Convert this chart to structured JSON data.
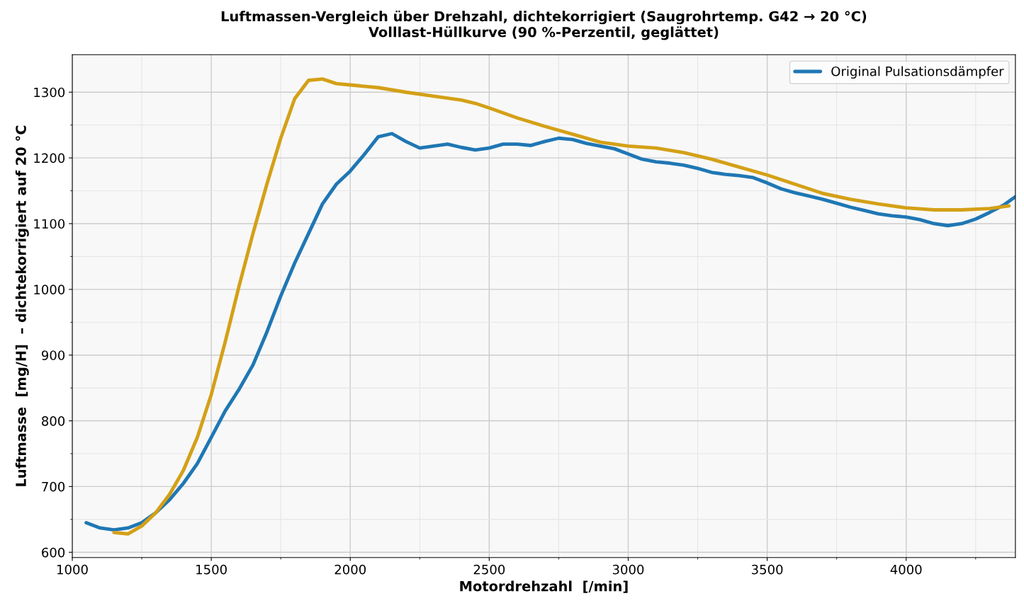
{
  "chart_data": {
    "type": "line",
    "title": "Luftmassen-Vergleich über Drehzahl, dichtekorrigiert (Saugrohrtemp. G42 → 20 °C)",
    "subtitle": "Volllast-Hüllkurve (90 %-Perzentil, geglättet)",
    "xlabel": "Motordrehzahl  [/min]",
    "ylabel": "Luftmasse  [mg/H]  – dichtekorrigiert auf 20 °C",
    "xlim": [
      1000,
      4393
    ],
    "xticks": [
      1000,
      1500,
      2000,
      2500,
      3000,
      3500,
      4000
    ],
    "ylim": [
      592,
      1357
    ],
    "yticks": [
      600,
      700,
      800,
      900,
      1000,
      1100,
      1200,
      1300
    ],
    "grid": true,
    "legend": "top right",
    "line_style": "solid",
    "marker": "none",
    "series": [
      {
        "name": "Original Pulsationsdämpfer",
        "color": "#1f77b4",
        "x": [
          1050,
          1100,
          1150,
          1200,
          1250,
          1300,
          1350,
          1400,
          1450,
          1500,
          1550,
          1600,
          1650,
          1700,
          1750,
          1800,
          1850,
          1900,
          1950,
          2000,
          2050,
          2100,
          2150,
          2200,
          2250,
          2300,
          2350,
          2400,
          2450,
          2500,
          2550,
          2600,
          2650,
          2700,
          2750,
          2800,
          2850,
          2900,
          2950,
          3000,
          3050,
          3100,
          3150,
          3200,
          3250,
          3300,
          3350,
          3400,
          3450,
          3500,
          3550,
          3600,
          3650,
          3700,
          3750,
          3800,
          3850,
          3900,
          3950,
          4000,
          4050,
          4100,
          4150,
          4200,
          4250,
          4300,
          4350,
          4393
        ],
        "values": [
          645,
          637,
          634,
          637,
          645,
          660,
          680,
          705,
          735,
          775,
          815,
          848,
          885,
          935,
          990,
          1040,
          1085,
          1130,
          1160,
          1180,
          1205,
          1232,
          1237,
          1225,
          1215,
          1218,
          1221,
          1216,
          1212,
          1215,
          1221,
          1221,
          1219,
          1225,
          1230,
          1228,
          1222,
          1218,
          1214,
          1206,
          1198,
          1194,
          1192,
          1189,
          1184,
          1178,
          1175,
          1173,
          1170,
          1162,
          1153,
          1147,
          1142,
          1137,
          1131,
          1125,
          1120,
          1115,
          1112,
          1110,
          1106,
          1100,
          1097,
          1100,
          1107,
          1117,
          1128,
          1141
        ]
      },
      {
        "color": "#d4a017",
        "x": [
          1150,
          1200,
          1250,
          1300,
          1350,
          1400,
          1450,
          1500,
          1550,
          1600,
          1650,
          1700,
          1750,
          1800,
          1850,
          1900,
          1950,
          2000,
          2100,
          2200,
          2300,
          2400,
          2450,
          2500,
          2600,
          2700,
          2800,
          2900,
          3000,
          3100,
          3200,
          3300,
          3400,
          3500,
          3600,
          3700,
          3800,
          3900,
          4000,
          4100,
          4200,
          4300,
          4370
        ],
        "values": [
          630,
          628,
          640,
          660,
          688,
          725,
          775,
          840,
          920,
          1005,
          1085,
          1160,
          1230,
          1290,
          1318,
          1320,
          1313,
          1311,
          1307,
          1300,
          1294,
          1288,
          1283,
          1276,
          1261,
          1248,
          1236,
          1224,
          1218,
          1215,
          1208,
          1198,
          1186,
          1174,
          1160,
          1146,
          1137,
          1130,
          1124,
          1121,
          1121,
          1123,
          1127
        ]
      }
    ]
  }
}
